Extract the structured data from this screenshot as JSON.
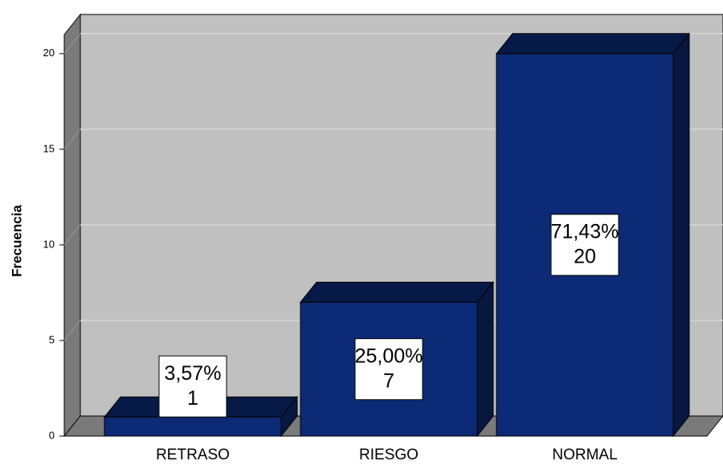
{
  "chart_data": {
    "type": "bar3d",
    "y_label": "Frecuencia",
    "categories": [
      "RETRASO",
      "RIESGO",
      "NORMAL"
    ],
    "values": [
      1,
      7,
      20
    ],
    "percent_labels": [
      "3,57%",
      "25,00%",
      "71,43%"
    ],
    "color": "#0c2a75",
    "ylim": [
      0,
      21
    ],
    "yticks": [
      0,
      5,
      10,
      15,
      20
    ],
    "grid": true
  }
}
